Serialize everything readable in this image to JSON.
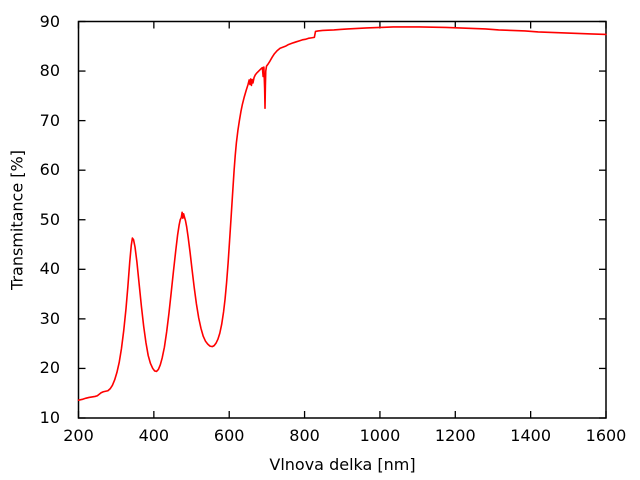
{
  "chart": {
    "background_color": "#ffffff",
    "axis_color": "#000000",
    "text_color": "#000000"
  },
  "chart_data": {
    "type": "line",
    "title": "",
    "xlabel": "Vlnova delka [nm]",
    "ylabel": "Transmitance [%]",
    "xlim": [
      200,
      1600
    ],
    "ylim": [
      10,
      90
    ],
    "x_ticks": [
      200,
      400,
      600,
      800,
      1000,
      1200,
      1400,
      1600
    ],
    "y_ticks": [
      10,
      20,
      30,
      40,
      50,
      60,
      70,
      80,
      90
    ],
    "grid": false,
    "legend": "none",
    "border_box": true,
    "series": [
      {
        "name": "transmittance-spectrum",
        "color": "#ff0000",
        "points": [
          [
            200,
            13.6
          ],
          [
            206,
            13.7
          ],
          [
            212,
            13.8
          ],
          [
            220,
            14.0
          ],
          [
            228,
            14.15
          ],
          [
            236,
            14.25
          ],
          [
            244,
            14.35
          ],
          [
            250,
            14.5
          ],
          [
            255,
            14.8
          ],
          [
            260,
            15.1
          ],
          [
            266,
            15.3
          ],
          [
            272,
            15.4
          ],
          [
            278,
            15.5
          ],
          [
            284,
            15.9
          ],
          [
            290,
            16.6
          ],
          [
            296,
            17.7
          ],
          [
            302,
            19.2
          ],
          [
            308,
            21.2
          ],
          [
            314,
            24.0
          ],
          [
            320,
            27.6
          ],
          [
            326,
            32.0
          ],
          [
            331,
            36.5
          ],
          [
            336,
            41.5
          ],
          [
            340,
            44.8
          ],
          [
            343,
            46.3
          ],
          [
            346,
            46.0
          ],
          [
            350,
            44.5
          ],
          [
            355,
            41.5
          ],
          [
            361,
            37.0
          ],
          [
            367,
            32.5
          ],
          [
            373,
            28.5
          ],
          [
            379,
            25.2
          ],
          [
            385,
            22.6
          ],
          [
            391,
            21.0
          ],
          [
            397,
            20.0
          ],
          [
            402,
            19.5
          ],
          [
            407,
            19.4
          ],
          [
            412,
            19.8
          ],
          [
            417,
            20.7
          ],
          [
            422,
            22.1
          ],
          [
            428,
            24.3
          ],
          [
            434,
            27.4
          ],
          [
            440,
            31.1
          ],
          [
            446,
            35.3
          ],
          [
            452,
            39.6
          ],
          [
            458,
            43.7
          ],
          [
            463,
            46.9
          ],
          [
            467,
            48.9
          ],
          [
            470,
            50.0
          ],
          [
            473,
            50.5
          ],
          [
            475,
            51.5
          ],
          [
            477,
            50.3
          ],
          [
            479,
            51.2
          ],
          [
            481,
            50.6
          ],
          [
            484,
            49.8
          ],
          [
            487,
            48.6
          ],
          [
            491,
            46.5
          ],
          [
            496,
            43.5
          ],
          [
            501,
            40.2
          ],
          [
            507,
            36.4
          ],
          [
            513,
            33.0
          ],
          [
            519,
            30.2
          ],
          [
            525,
            28.1
          ],
          [
            531,
            26.5
          ],
          [
            537,
            25.5
          ],
          [
            543,
            24.9
          ],
          [
            549,
            24.5
          ],
          [
            555,
            24.4
          ],
          [
            560,
            24.6
          ],
          [
            565,
            25.1
          ],
          [
            570,
            25.9
          ],
          [
            575,
            27.1
          ],
          [
            580,
            28.9
          ],
          [
            585,
            31.4
          ],
          [
            589,
            34.0
          ],
          [
            593,
            37.3
          ],
          [
            597,
            41.2
          ],
          [
            601,
            45.8
          ],
          [
            605,
            50.5
          ],
          [
            609,
            55.3
          ],
          [
            613,
            60.0
          ],
          [
            616,
            63.0
          ],
          [
            619,
            65.5
          ],
          [
            623,
            68.0
          ],
          [
            627,
            70.0
          ],
          [
            631,
            71.8
          ],
          [
            635,
            73.3
          ],
          [
            640,
            74.8
          ],
          [
            645,
            76.1
          ],
          [
            650,
            77.3
          ],
          [
            653,
            78.2
          ],
          [
            655,
            77.3
          ],
          [
            657,
            78.4
          ],
          [
            659,
            77.1
          ],
          [
            661,
            78.3
          ],
          [
            663,
            77.6
          ],
          [
            666,
            78.7
          ],
          [
            669,
            79.2
          ],
          [
            673,
            79.6
          ],
          [
            677,
            79.9
          ],
          [
            681,
            80.2
          ],
          [
            685,
            80.5
          ],
          [
            688,
            80.7
          ],
          [
            690,
            78.9
          ],
          [
            692,
            80.8
          ],
          [
            694,
            76.5
          ],
          [
            695,
            72.5
          ],
          [
            696,
            77.0
          ],
          [
            697,
            80.0
          ],
          [
            699,
            81.0
          ],
          [
            703,
            81.4
          ],
          [
            708,
            82.0
          ],
          [
            714,
            82.8
          ],
          [
            720,
            83.5
          ],
          [
            727,
            84.1
          ],
          [
            735,
            84.6
          ],
          [
            742,
            84.8
          ],
          [
            749,
            85.0
          ],
          [
            756,
            85.3
          ],
          [
            763,
            85.5
          ],
          [
            770,
            85.7
          ],
          [
            778,
            85.9
          ],
          [
            786,
            86.1
          ],
          [
            794,
            86.3
          ],
          [
            802,
            86.4
          ],
          [
            810,
            86.6
          ],
          [
            818,
            86.7
          ],
          [
            826,
            86.8
          ],
          [
            829,
            88.0
          ],
          [
            836,
            88.1
          ],
          [
            848,
            88.2
          ],
          [
            862,
            88.25
          ],
          [
            878,
            88.3
          ],
          [
            895,
            88.4
          ],
          [
            915,
            88.5
          ],
          [
            940,
            88.6
          ],
          [
            965,
            88.7
          ],
          [
            1000,
            88.8
          ],
          [
            1035,
            88.9
          ],
          [
            1070,
            88.9
          ],
          [
            1105,
            88.9
          ],
          [
            1140,
            88.85
          ],
          [
            1175,
            88.8
          ],
          [
            1210,
            88.7
          ],
          [
            1245,
            88.6
          ],
          [
            1280,
            88.5
          ],
          [
            1315,
            88.3
          ],
          [
            1350,
            88.2
          ],
          [
            1385,
            88.1
          ],
          [
            1420,
            87.9
          ],
          [
            1455,
            87.8
          ],
          [
            1490,
            87.7
          ],
          [
            1525,
            87.6
          ],
          [
            1560,
            87.5
          ],
          [
            1600,
            87.4
          ]
        ]
      }
    ]
  }
}
